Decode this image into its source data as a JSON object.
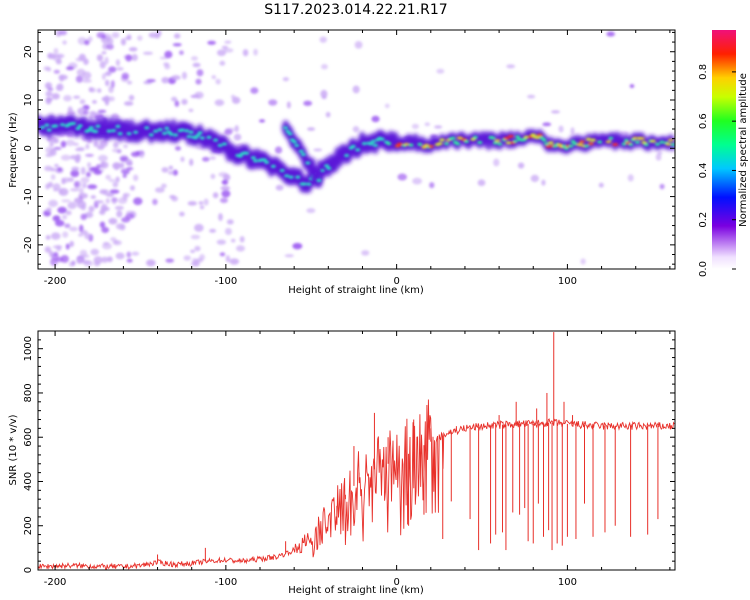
{
  "title": "S117.2023.014.22.21.R17",
  "colors": {
    "snr_line": "#e8302a",
    "ridge_core": "#2de0c8",
    "ridge_hot": "#ff2a1a",
    "ridge_body": "#5a1ad8",
    "ridge_halo": "#c9a8f5",
    "background": "#ffffff"
  },
  "chart_data": [
    {
      "type": "heatmap",
      "xlabel": "Height of straight line (km)",
      "ylabel": "Frequency (Hz)",
      "xlim": [
        -210,
        163
      ],
      "ylim": [
        -25,
        24.5
      ],
      "xticks": [
        -200,
        -100,
        0,
        100
      ],
      "yticks": [
        -20,
        -10,
        0,
        10,
        20
      ],
      "colorbar": {
        "label": "Normalized spectral amplitude",
        "range": [
          0.0,
          0.97
        ],
        "ticks": [
          0.0,
          0.2,
          0.4,
          0.6,
          0.8
        ],
        "tick_labels": [
          "0.0",
          "0.2",
          "0.4",
          "0.6",
          "0.8"
        ],
        "colormap": "rainbow"
      },
      "ridge": {
        "x": [
          -210,
          -190,
          -170,
          -150,
          -130,
          -115,
          -100,
          -90,
          -80,
          -70,
          -60,
          -52,
          -45,
          -38,
          -30,
          -20,
          -10,
          0,
          20,
          40,
          60,
          80,
          90,
          100,
          120,
          140,
          163
        ],
        "frequency": [
          4.5,
          4.5,
          4,
          3.5,
          3.5,
          2.5,
          0,
          -1.5,
          -2.5,
          -4,
          -6,
          -7.5,
          -5,
          -3,
          -1,
          1,
          1.5,
          1,
          1,
          1.5,
          1.5,
          2.5,
          1,
          0.5,
          1.5,
          1.5,
          1
        ]
      },
      "secondary_branch": {
        "x": [
          -65,
          -60,
          -55,
          -50,
          -45
        ],
        "frequency": [
          4,
          1.5,
          -1,
          -4,
          -6.5
        ]
      }
    },
    {
      "type": "line",
      "xlabel": "Height of straight line (km)",
      "ylabel": "SNR (10 * v/v)",
      "xlim": [
        -210,
        163
      ],
      "ylim": [
        0,
        1080
      ],
      "xticks": [
        -200,
        -100,
        0,
        100
      ],
      "yticks": [
        0,
        200,
        400,
        600,
        800,
        1000
      ],
      "series": [
        {
          "x": [
            -210,
            -200,
            -190,
            -180,
            -170,
            -160,
            -150,
            -140,
            -130,
            -120,
            -110,
            -100,
            -90,
            -80,
            -70,
            -60,
            -50,
            -40,
            -30,
            -20,
            -10,
            0,
            10,
            20,
            30,
            40,
            50,
            60,
            70,
            80,
            90,
            100,
            110,
            120,
            130,
            140,
            150,
            163
          ],
          "values": [
            15,
            18,
            20,
            18,
            15,
            15,
            20,
            35,
            25,
            30,
            40,
            45,
            40,
            50,
            60,
            90,
            140,
            240,
            340,
            420,
            470,
            490,
            540,
            580,
            620,
            640,
            650,
            655,
            660,
            660,
            665,
            660,
            655,
            650,
            650,
            650,
            650,
            650
          ],
          "spikes": [
            {
              "x": -140,
              "y": 70
            },
            {
              "x": -112,
              "y": 100
            },
            {
              "x": -65,
              "y": 130
            },
            {
              "x": -35,
              "y": 240
            },
            {
              "x": -30,
              "y": 320
            },
            {
              "x": -25,
              "y": 560
            },
            {
              "x": -22,
              "y": 440
            },
            {
              "x": -13,
              "y": 710
            },
            {
              "x": -5,
              "y": 600
            },
            {
              "x": 10,
              "y": 680
            },
            {
              "x": 20,
              "y": 640
            },
            {
              "x": 35,
              "y": 650
            },
            {
              "x": 60,
              "y": 700
            },
            {
              "x": 70,
              "y": 760
            },
            {
              "x": 82,
              "y": 730
            },
            {
              "x": 88,
              "y": 800
            },
            {
              "x": 92,
              "y": 1075
            },
            {
              "x": 98,
              "y": 760
            },
            {
              "x": 103,
              "y": 700
            }
          ],
          "dropouts": [
            {
              "x": 7,
              "y": 200
            },
            {
              "x": 16,
              "y": 250
            },
            {
              "x": 27,
              "y": 140
            },
            {
              "x": 32,
              "y": 310
            },
            {
              "x": 43,
              "y": 230
            },
            {
              "x": 48,
              "y": 90
            },
            {
              "x": 55,
              "y": 120
            },
            {
              "x": 58,
              "y": 160
            },
            {
              "x": 62,
              "y": 170
            },
            {
              "x": 64,
              "y": 90
            },
            {
              "x": 68,
              "y": 260
            },
            {
              "x": 72,
              "y": 250
            },
            {
              "x": 75,
              "y": 280
            },
            {
              "x": 77,
              "y": 130
            },
            {
              "x": 80,
              "y": 120
            },
            {
              "x": 83,
              "y": 300
            },
            {
              "x": 86,
              "y": 150
            },
            {
              "x": 89,
              "y": 180
            },
            {
              "x": 91,
              "y": 90
            },
            {
              "x": 94,
              "y": 120
            },
            {
              "x": 97,
              "y": 110
            },
            {
              "x": 100,
              "y": 150
            },
            {
              "x": 105,
              "y": 140
            },
            {
              "x": 110,
              "y": 300
            },
            {
              "x": 115,
              "y": 150
            },
            {
              "x": 122,
              "y": 170
            },
            {
              "x": 128,
              "y": 200
            },
            {
              "x": 137,
              "y": 150
            },
            {
              "x": 147,
              "y": 160
            },
            {
              "x": 153,
              "y": 230
            }
          ]
        }
      ]
    }
  ]
}
